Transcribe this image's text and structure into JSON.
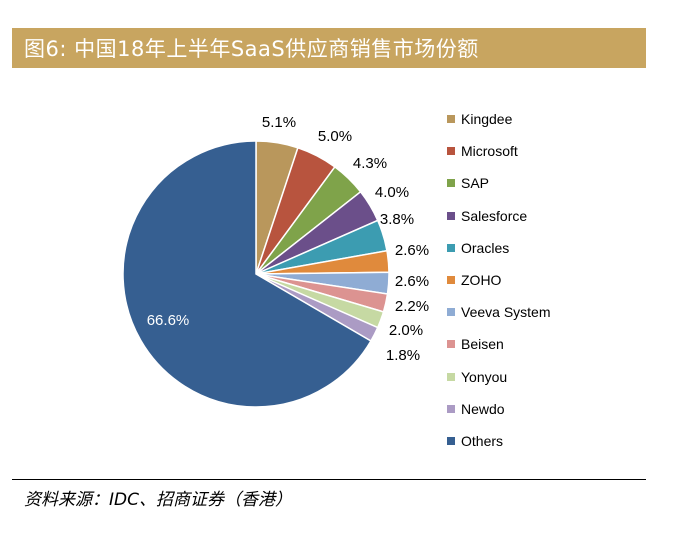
{
  "header": {
    "title": "图6: 中国18年上半年SaaS供应商销售市场份额"
  },
  "footer": {
    "source": "资料来源：IDC、招商证券（香港）"
  },
  "chart_data": {
    "type": "pie",
    "title": "图6: 中国18年上半年SaaS供应商销售市场份额",
    "categories": [
      "Kingdee",
      "Microsoft",
      "SAP",
      "Salesforce",
      "Oracles",
      "ZOHO",
      "Veeva System",
      "Beisen",
      "Yonyou",
      "Newdo",
      "Others"
    ],
    "values": [
      5.1,
      5.0,
      4.3,
      4.0,
      3.8,
      2.6,
      2.6,
      2.2,
      2.0,
      1.8,
      66.6
    ],
    "labels": [
      "5.1%",
      "5.0%",
      "4.3%",
      "4.0%",
      "3.8%",
      "2.6%",
      "2.6%",
      "2.2%",
      "2.0%",
      "1.8%",
      "66.6%"
    ],
    "colors": [
      "#b9975c",
      "#b8543e",
      "#7fa34a",
      "#6b4f8a",
      "#3c9cb1",
      "#e08a3c",
      "#8facd4",
      "#dc9391",
      "#c6d9a3",
      "#ab9bc4",
      "#365f91"
    ],
    "legend_position": "right"
  }
}
